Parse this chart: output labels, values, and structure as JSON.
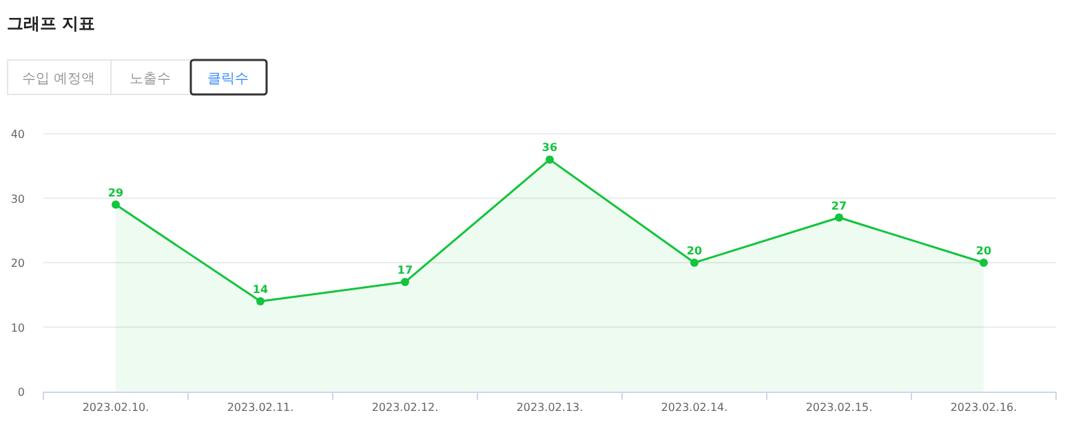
{
  "chart_data": {
    "type": "area",
    "title": "그래프 지표",
    "annotations": [
      "수입 예정액",
      "노출수",
      "클릭수"
    ],
    "categories": [
      "2023.02.10.",
      "2023.02.11.",
      "2023.02.12.",
      "2023.02.13.",
      "2023.02.14.",
      "2023.02.15.",
      "2023.02.16."
    ],
    "values": [
      29,
      14,
      17,
      36,
      20,
      27,
      20
    ],
    "color": "#13c43d",
    "ylim": [
      0,
      40
    ],
    "yticks": [
      0,
      10,
      20,
      30,
      40
    ],
    "grid": "y",
    "marker": "circle",
    "data_labels": true
  }
}
